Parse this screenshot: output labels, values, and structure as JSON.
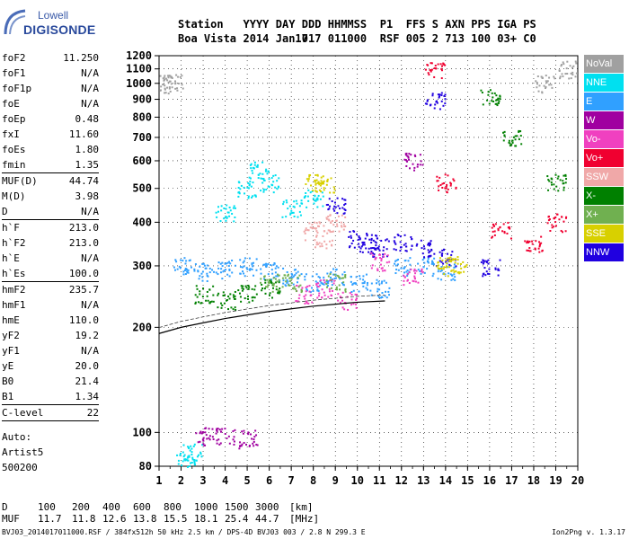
{
  "logo": {
    "line1": "Lowell",
    "line2": "DIGISONDE"
  },
  "header": {
    "labels": [
      "Station",
      "YYYY",
      "DAY",
      "DDD",
      "HHMMSS",
      "P1",
      "FFS",
      "S",
      "AXN",
      "PPS",
      "IGA",
      "PS"
    ],
    "values": [
      "Boa Vista",
      "2014",
      "Jan17",
      "017",
      "011000",
      "RSF",
      "005",
      "2",
      "713",
      "100",
      "03+",
      "C0"
    ]
  },
  "params": {
    "group1": [
      {
        "name": "foF2",
        "value": "11.250"
      },
      {
        "name": "foF1",
        "value": "N/A"
      },
      {
        "name": "foF1p",
        "value": "N/A"
      },
      {
        "name": "foE",
        "value": "N/A"
      },
      {
        "name": "foEp",
        "value": "0.48"
      },
      {
        "name": "fxI",
        "value": "11.60"
      },
      {
        "name": "foEs",
        "value": "1.80"
      },
      {
        "name": "fmin",
        "value": "1.35"
      }
    ],
    "group2": [
      {
        "name": "MUF(D)",
        "value": "44.74"
      },
      {
        "name": "M(D)",
        "value": "3.98"
      },
      {
        "name": "D",
        "value": "N/A"
      }
    ],
    "group3": [
      {
        "name": "h`F",
        "value": "213.0"
      },
      {
        "name": "h`F2",
        "value": "213.0"
      },
      {
        "name": "h`E",
        "value": "N/A"
      },
      {
        "name": "h`Es",
        "value": "100.0"
      }
    ],
    "group4": [
      {
        "name": "hmF2",
        "value": "235.7"
      },
      {
        "name": "hmF1",
        "value": "N/A"
      },
      {
        "name": "hmE",
        "value": "110.0"
      },
      {
        "name": "yF2",
        "value": "19.2"
      },
      {
        "name": "yF1",
        "value": "N/A"
      },
      {
        "name": "yE",
        "value": "20.0"
      },
      {
        "name": "B0",
        "value": "21.4"
      },
      {
        "name": "B1",
        "value": "1.34"
      }
    ],
    "group5": [
      {
        "name": "C-level",
        "value": "22"
      }
    ]
  },
  "auto": {
    "line1": "Auto:",
    "line2": "Artist5",
    "line3": "500200"
  },
  "legend": [
    {
      "label": "NoVal",
      "color": "#a0a0a0"
    },
    {
      "label": "NNE",
      "color": "#00e0f0"
    },
    {
      "label": "E",
      "color": "#30a0ff"
    },
    {
      "label": "W",
      "color": "#a000a0"
    },
    {
      "label": "Vo-",
      "color": "#f040c0"
    },
    {
      "label": "Vo+",
      "color": "#f00030"
    },
    {
      "label": "SSW",
      "color": "#f0a8a8"
    },
    {
      "label": "X-",
      "color": "#008000"
    },
    {
      "label": "X+",
      "color": "#70b050"
    },
    {
      "label": "SSE",
      "color": "#d8d000"
    },
    {
      "label": "NNW",
      "color": "#2000e0"
    }
  ],
  "chart_data": {
    "type": "scatter",
    "title": "",
    "xlabel": "",
    "ylabel": "",
    "xlim": [
      1,
      20
    ],
    "ylim": [
      80,
      1200
    ],
    "x_ticks": [
      1,
      2,
      3,
      4,
      5,
      6,
      7,
      8,
      9,
      10,
      11,
      12,
      13,
      14,
      15,
      16,
      17,
      18,
      19,
      20
    ],
    "y_ticks": [
      80,
      100,
      200,
      300,
      400,
      500,
      600,
      700,
      800,
      900,
      1000,
      1100,
      1200
    ],
    "y_scale": "log",
    "grid": true,
    "legend_position": "right",
    "series": [
      {
        "name": "E",
        "color": "#30a0ff",
        "points": [
          [
            2.0,
            300
          ],
          [
            3.0,
            290
          ],
          [
            4.0,
            295
          ],
          [
            5.0,
            300
          ],
          [
            6.0,
            290
          ],
          [
            7.0,
            280
          ],
          [
            8.0,
            270
          ],
          [
            9.0,
            280
          ],
          [
            10.0,
            270
          ],
          [
            11.0,
            260
          ],
          [
            12.0,
            300
          ],
          [
            13.0,
            300
          ],
          [
            14.0,
            290
          ]
        ]
      },
      {
        "name": "NNE",
        "color": "#00e0f0",
        "points": [
          [
            4.0,
            430
          ],
          [
            5.0,
            500
          ],
          [
            5.5,
            570
          ],
          [
            6.0,
            520
          ],
          [
            7.0,
            440
          ],
          [
            8.0,
            470
          ],
          [
            2.2,
            83
          ],
          [
            2.5,
            88
          ]
        ]
      },
      {
        "name": "NNW",
        "color": "#2000e0",
        "points": [
          [
            9.0,
            450
          ],
          [
            10.0,
            360
          ],
          [
            10.5,
            350
          ],
          [
            11.0,
            340
          ],
          [
            12.0,
            350
          ],
          [
            13.0,
            340
          ],
          [
            13.5,
            900
          ],
          [
            14.0,
            320
          ],
          [
            16.0,
            300
          ]
        ]
      },
      {
        "name": "Vo-",
        "color": "#f040c0",
        "points": [
          [
            7.5,
            250
          ],
          [
            8.5,
            260
          ],
          [
            9.5,
            240
          ],
          [
            11.0,
            310
          ],
          [
            12.5,
            280
          ]
        ]
      },
      {
        "name": "Vo+",
        "color": "#f00030",
        "points": [
          [
            13.5,
            1100
          ],
          [
            14.0,
            520
          ],
          [
            16.5,
            380
          ],
          [
            18.0,
            350
          ],
          [
            19.0,
            400
          ]
        ]
      },
      {
        "name": "SSW",
        "color": "#f0a8a8",
        "points": [
          [
            8.0,
            380
          ],
          [
            8.5,
            360
          ],
          [
            9.0,
            400
          ]
        ]
      },
      {
        "name": "X-",
        "color": "#008000",
        "points": [
          [
            3.0,
            250
          ],
          [
            4.0,
            240
          ],
          [
            5.0,
            250
          ],
          [
            6.0,
            260
          ],
          [
            16.0,
            920
          ],
          [
            17.0,
            700
          ],
          [
            19.0,
            520
          ]
        ]
      },
      {
        "name": "X+",
        "color": "#70b050",
        "points": [
          [
            6.0,
            270
          ],
          [
            7.0,
            270
          ],
          [
            9.0,
            270
          ]
        ]
      },
      {
        "name": "SSE",
        "color": "#d8d000",
        "points": [
          [
            8.0,
            520
          ],
          [
            8.5,
            520
          ],
          [
            14.0,
            300
          ],
          [
            14.5,
            305
          ]
        ]
      },
      {
        "name": "W",
        "color": "#a000a0",
        "points": [
          [
            3.0,
            98
          ],
          [
            4.0,
            98
          ],
          [
            5.0,
            96
          ],
          [
            12.5,
            600
          ]
        ]
      },
      {
        "name": "NoVal",
        "color": "#a0a0a0",
        "points": [
          [
            1.3,
            1000
          ],
          [
            1.6,
            1010
          ],
          [
            18.5,
            1000
          ],
          [
            19.5,
            1100
          ]
        ]
      }
    ],
    "trace": {
      "label": "",
      "points": [
        [
          1.0,
          192
        ],
        [
          2.0,
          200
        ],
        [
          3.0,
          206
        ],
        [
          4.0,
          212
        ],
        [
          5.0,
          217
        ],
        [
          6.0,
          222
        ],
        [
          7.0,
          226
        ],
        [
          8.0,
          230
        ],
        [
          9.0,
          233
        ],
        [
          10.0,
          236
        ],
        [
          11.25,
          238
        ]
      ]
    }
  },
  "muf_table": {
    "d_label": "D",
    "d_values": [
      "100",
      "200",
      "400",
      "600",
      "800",
      "1000",
      "1500",
      "3000",
      "[km]"
    ],
    "muf_label": "MUF",
    "muf_values": [
      "11.7",
      "11.8",
      "12.6",
      "13.8",
      "15.5",
      "18.1",
      "25.4",
      "44.7",
      "[MHz]"
    ]
  },
  "footer": {
    "left": "BVJ03_2014017011000.RSF / 384fx512h 50 kHz 2.5 km / DPS-4D BVJ03 003 / 2.8 N 299.3 E",
    "right": "Ion2Png v. 1.3.17"
  }
}
